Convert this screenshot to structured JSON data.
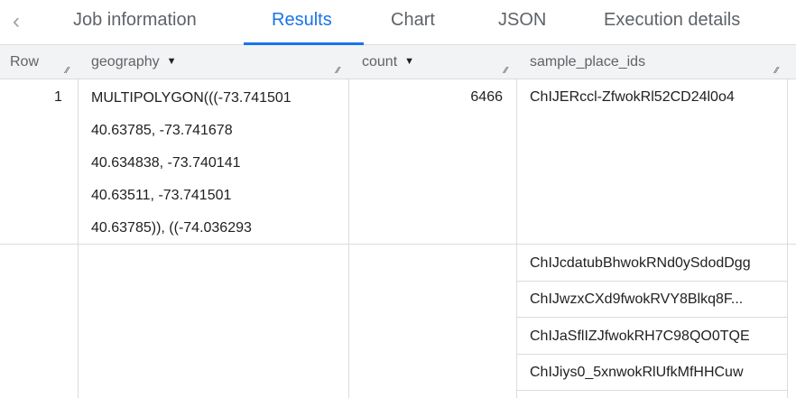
{
  "tabs": {
    "back_icon": "chevron-left-icon",
    "items": [
      "Job information",
      "Results",
      "Chart",
      "JSON",
      "Execution details"
    ],
    "active": "Results"
  },
  "columns": {
    "row": "Row",
    "geography": "geography",
    "count": "count",
    "sample_place_ids": "sample_place_ids"
  },
  "rows": [
    {
      "row": "1",
      "geography_lines": [
        "MULTIPOLYGON(((-73.741501",
        "40.63785, -73.741678",
        "40.634838, -73.740141",
        "40.63511, -73.741501",
        "40.63785)), ((-74.036293"
      ],
      "count": "6466",
      "sample_place_ids": [
        "ChIJERccl-ZfwokRl52CD24l0o4",
        "ChIJcdatubBhwokRNd0ySdodDgg",
        "ChIJwzxCXd9fwokRVY8Blkq8F...",
        "ChIJaSflIZJfwokRH7C98QO0TQE",
        "ChIJiys0_5xnwokRlUfkMfHHCuw"
      ]
    }
  ]
}
